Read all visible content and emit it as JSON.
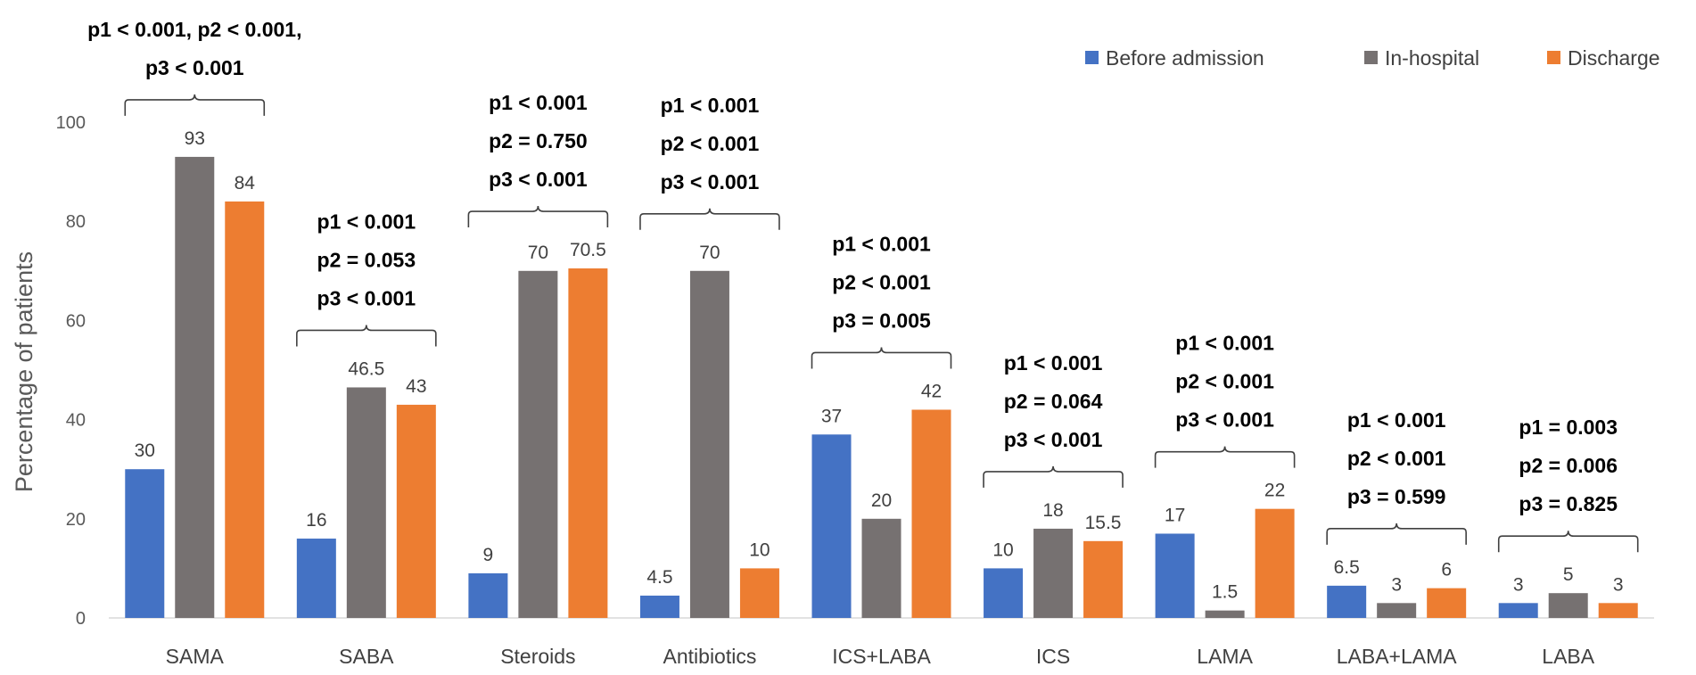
{
  "chart_data": {
    "type": "bar",
    "ylabel": "Percentage of patients",
    "xlabel": "",
    "ylim": [
      0,
      100
    ],
    "yticks": [
      "0",
      "20",
      "40",
      "60",
      "80",
      "100"
    ],
    "grid": false,
    "legend_position": "top-right",
    "categories": [
      "SAMA",
      "SABA",
      "Steroids",
      "Antibiotics",
      "ICS+LABA",
      "ICS",
      "LAMA",
      "LABA+LAMA",
      "LABA"
    ],
    "series": [
      {
        "name": "Before admission",
        "color": "#4472c4",
        "values": [
          30,
          16,
          9,
          4.5,
          37,
          10,
          17,
          6.5,
          3
        ],
        "labels": [
          "30",
          "16",
          "9",
          "4.5",
          "37",
          "10",
          "17",
          "6.5",
          "3"
        ]
      },
      {
        "name": "In-hospital",
        "color": "#767171",
        "values": [
          93,
          46.5,
          70,
          70,
          20,
          18,
          1.5,
          3,
          5
        ],
        "labels": [
          "93",
          "46.5",
          "70",
          "70",
          "20",
          "18",
          "1.5",
          "3",
          "5"
        ]
      },
      {
        "name": "Discharge",
        "color": "#ed7d31",
        "values": [
          84,
          43,
          70.5,
          10,
          42,
          15.5,
          22,
          6,
          3
        ],
        "labels": [
          "84",
          "43",
          "70.5",
          "10",
          "42",
          "15.5",
          "22",
          "6",
          "3"
        ]
      }
    ],
    "annotations": [
      {
        "category": "SAMA",
        "lines": [
          "p1 < 0.001, p2 < 0.001,",
          "p3 < 0.001"
        ]
      },
      {
        "category": "SABA",
        "lines": [
          "p1 < 0.001",
          "p2 = 0.053",
          "p3 < 0.001"
        ]
      },
      {
        "category": "Steroids",
        "lines": [
          "p1 < 0.001",
          "p2 = 0.750",
          "p3 < 0.001"
        ]
      },
      {
        "category": "Antibiotics",
        "lines": [
          "p1 < 0.001",
          "p2 < 0.001",
          "p3 < 0.001"
        ]
      },
      {
        "category": "ICS+LABA",
        "lines": [
          "p1 < 0.001",
          "p2 < 0.001",
          "p3 = 0.005"
        ]
      },
      {
        "category": "ICS",
        "lines": [
          "p1 < 0.001",
          "p2 = 0.064",
          "p3 < 0.001"
        ]
      },
      {
        "category": "LAMA",
        "lines": [
          "p1 < 0.001",
          "p2 < 0.001",
          "p3 < 0.001"
        ]
      },
      {
        "category": "LABA+LAMA",
        "lines": [
          "p1 < 0.001",
          "p2 < 0.001",
          "p3 = 0.599"
        ]
      },
      {
        "category": "LABA",
        "lines": [
          "p1 = 0.003",
          "p2 = 0.006",
          "p3 = 0.825"
        ]
      }
    ]
  }
}
